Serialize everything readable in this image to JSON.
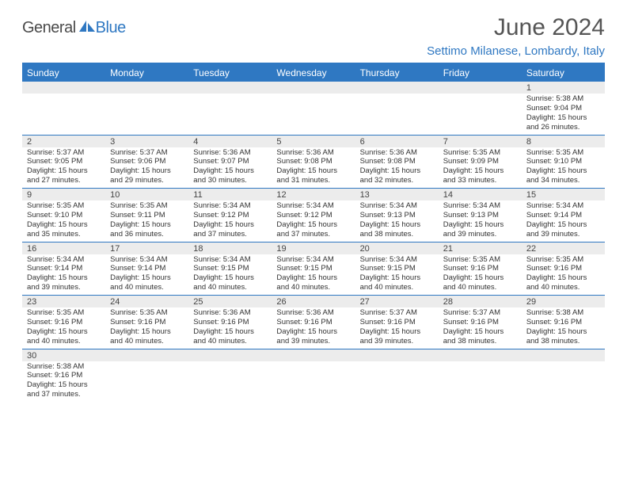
{
  "logo": {
    "general": "General",
    "blue": "Blue"
  },
  "title": "June 2024",
  "subtitle": "Settimo Milanese, Lombardy, Italy",
  "colors": {
    "accent": "#2f78c2",
    "header_bg": "#2f78c2",
    "header_text": "#ffffff",
    "daynum_bg": "#ececec",
    "text": "#333333",
    "title_text": "#555555"
  },
  "day_labels": [
    "Sunday",
    "Monday",
    "Tuesday",
    "Wednesday",
    "Thursday",
    "Friday",
    "Saturday"
  ],
  "weeks": [
    [
      null,
      null,
      null,
      null,
      null,
      null,
      {
        "n": "1",
        "sr": "5:38 AM",
        "ss": "9:04 PM",
        "dl": "15 hours and 26 minutes."
      }
    ],
    [
      {
        "n": "2",
        "sr": "5:37 AM",
        "ss": "9:05 PM",
        "dl": "15 hours and 27 minutes."
      },
      {
        "n": "3",
        "sr": "5:37 AM",
        "ss": "9:06 PM",
        "dl": "15 hours and 29 minutes."
      },
      {
        "n": "4",
        "sr": "5:36 AM",
        "ss": "9:07 PM",
        "dl": "15 hours and 30 minutes."
      },
      {
        "n": "5",
        "sr": "5:36 AM",
        "ss": "9:08 PM",
        "dl": "15 hours and 31 minutes."
      },
      {
        "n": "6",
        "sr": "5:36 AM",
        "ss": "9:08 PM",
        "dl": "15 hours and 32 minutes."
      },
      {
        "n": "7",
        "sr": "5:35 AM",
        "ss": "9:09 PM",
        "dl": "15 hours and 33 minutes."
      },
      {
        "n": "8",
        "sr": "5:35 AM",
        "ss": "9:10 PM",
        "dl": "15 hours and 34 minutes."
      }
    ],
    [
      {
        "n": "9",
        "sr": "5:35 AM",
        "ss": "9:10 PM",
        "dl": "15 hours and 35 minutes."
      },
      {
        "n": "10",
        "sr": "5:35 AM",
        "ss": "9:11 PM",
        "dl": "15 hours and 36 minutes."
      },
      {
        "n": "11",
        "sr": "5:34 AM",
        "ss": "9:12 PM",
        "dl": "15 hours and 37 minutes."
      },
      {
        "n": "12",
        "sr": "5:34 AM",
        "ss": "9:12 PM",
        "dl": "15 hours and 37 minutes."
      },
      {
        "n": "13",
        "sr": "5:34 AM",
        "ss": "9:13 PM",
        "dl": "15 hours and 38 minutes."
      },
      {
        "n": "14",
        "sr": "5:34 AM",
        "ss": "9:13 PM",
        "dl": "15 hours and 39 minutes."
      },
      {
        "n": "15",
        "sr": "5:34 AM",
        "ss": "9:14 PM",
        "dl": "15 hours and 39 minutes."
      }
    ],
    [
      {
        "n": "16",
        "sr": "5:34 AM",
        "ss": "9:14 PM",
        "dl": "15 hours and 39 minutes."
      },
      {
        "n": "17",
        "sr": "5:34 AM",
        "ss": "9:14 PM",
        "dl": "15 hours and 40 minutes."
      },
      {
        "n": "18",
        "sr": "5:34 AM",
        "ss": "9:15 PM",
        "dl": "15 hours and 40 minutes."
      },
      {
        "n": "19",
        "sr": "5:34 AM",
        "ss": "9:15 PM",
        "dl": "15 hours and 40 minutes."
      },
      {
        "n": "20",
        "sr": "5:34 AM",
        "ss": "9:15 PM",
        "dl": "15 hours and 40 minutes."
      },
      {
        "n": "21",
        "sr": "5:35 AM",
        "ss": "9:16 PM",
        "dl": "15 hours and 40 minutes."
      },
      {
        "n": "22",
        "sr": "5:35 AM",
        "ss": "9:16 PM",
        "dl": "15 hours and 40 minutes."
      }
    ],
    [
      {
        "n": "23",
        "sr": "5:35 AM",
        "ss": "9:16 PM",
        "dl": "15 hours and 40 minutes."
      },
      {
        "n": "24",
        "sr": "5:35 AM",
        "ss": "9:16 PM",
        "dl": "15 hours and 40 minutes."
      },
      {
        "n": "25",
        "sr": "5:36 AM",
        "ss": "9:16 PM",
        "dl": "15 hours and 40 minutes."
      },
      {
        "n": "26",
        "sr": "5:36 AM",
        "ss": "9:16 PM",
        "dl": "15 hours and 39 minutes."
      },
      {
        "n": "27",
        "sr": "5:37 AM",
        "ss": "9:16 PM",
        "dl": "15 hours and 39 minutes."
      },
      {
        "n": "28",
        "sr": "5:37 AM",
        "ss": "9:16 PM",
        "dl": "15 hours and 38 minutes."
      },
      {
        "n": "29",
        "sr": "5:38 AM",
        "ss": "9:16 PM",
        "dl": "15 hours and 38 minutes."
      }
    ],
    [
      {
        "n": "30",
        "sr": "5:38 AM",
        "ss": "9:16 PM",
        "dl": "15 hours and 37 minutes."
      },
      null,
      null,
      null,
      null,
      null,
      null
    ]
  ],
  "labels": {
    "sunrise": "Sunrise:",
    "sunset": "Sunset:",
    "daylight": "Daylight:"
  }
}
